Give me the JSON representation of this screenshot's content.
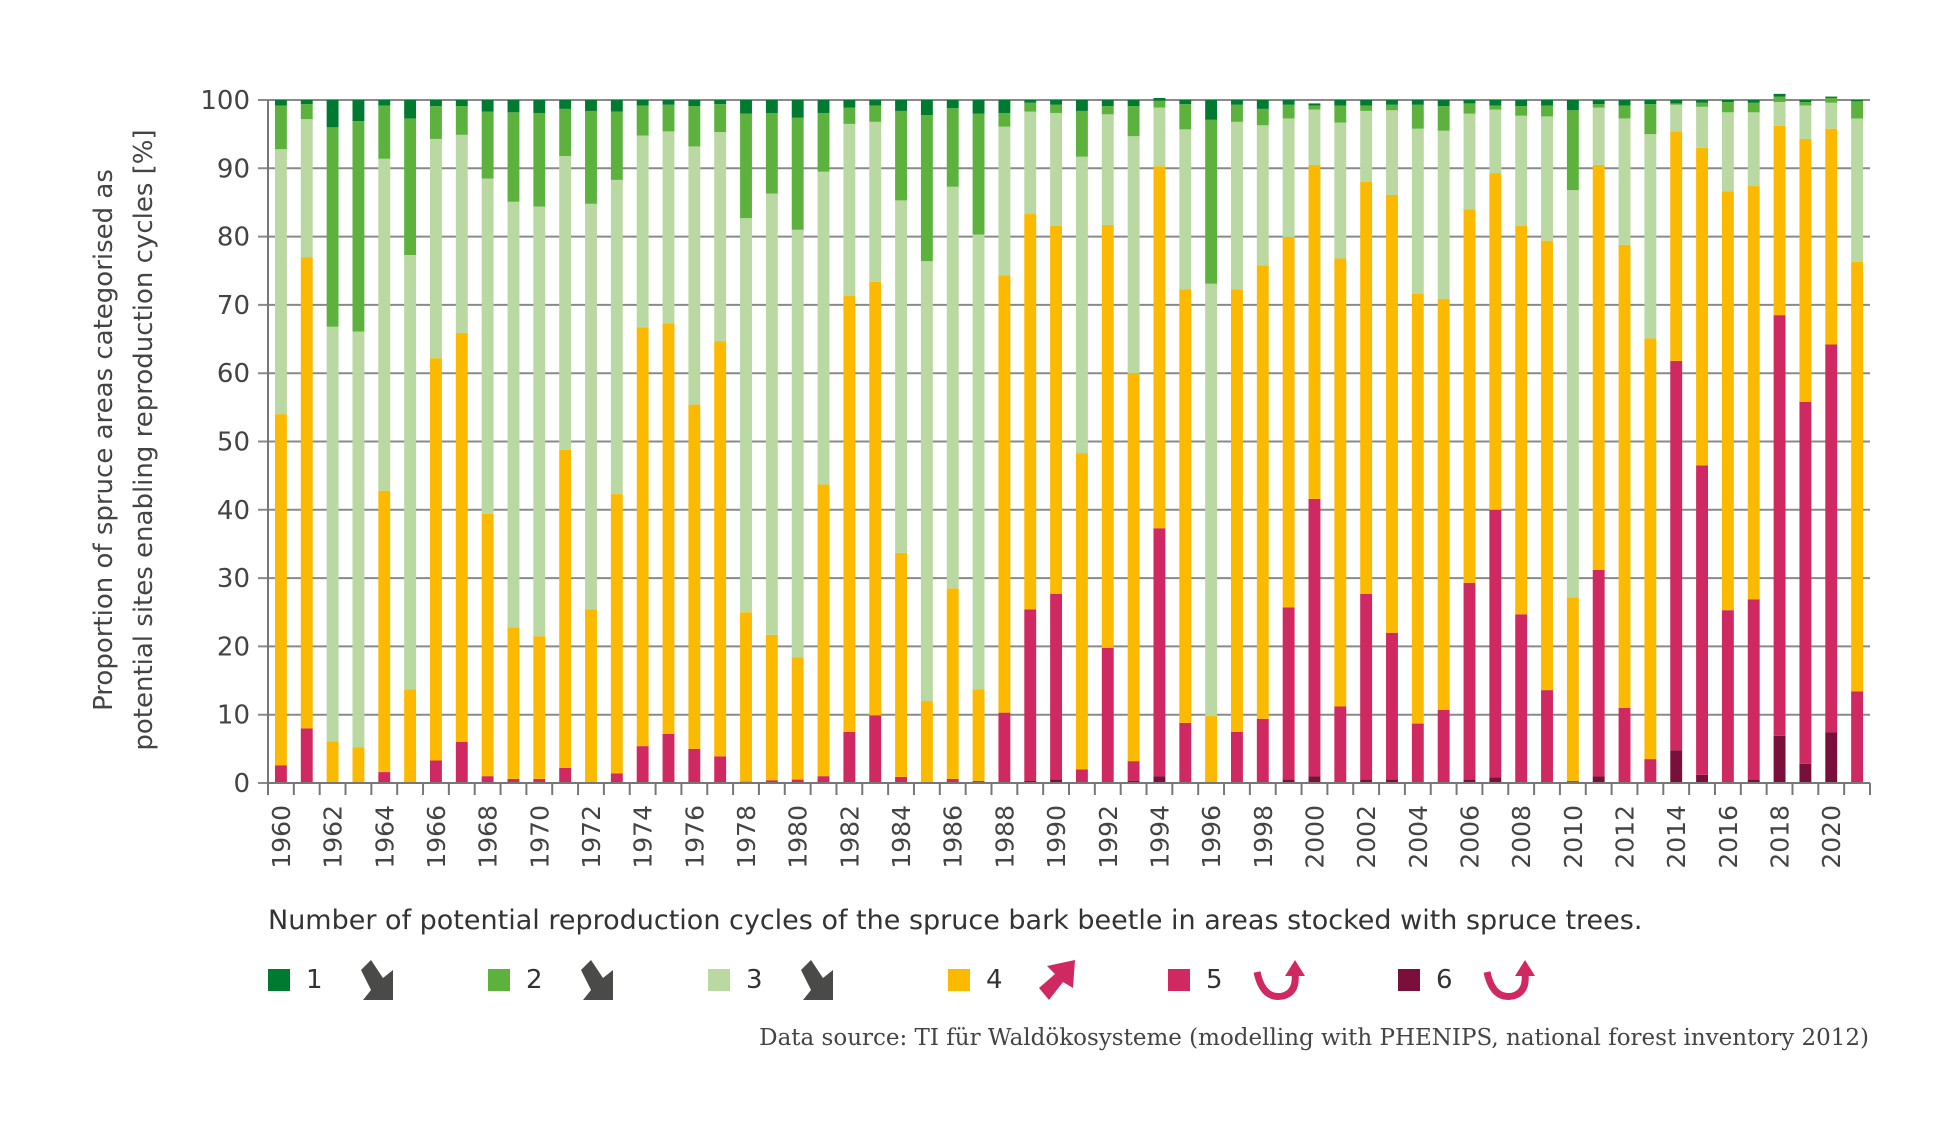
{
  "chart_data": {
    "type": "bar",
    "stacked": true,
    "title": "",
    "xlabel": "",
    "ylabel": "Proportion of spruce areas categorised as potential sites enabling reproduction cycles [%]",
    "ylabel_lines": [
      "Proportion of spruce areas categorised as",
      "potential sites enabling reproduction cycles [%]"
    ],
    "ylim": [
      0,
      100
    ],
    "yticks": [
      0,
      10,
      20,
      30,
      40,
      50,
      60,
      70,
      80,
      90,
      100
    ],
    "grid": true,
    "legend_placement": "bottom",
    "legend_title": "Number of potential reproduction cycles of the spruce bark beetle in areas stocked with spruce trees.",
    "x_tick_labels": [
      "1960",
      "1962",
      "1964",
      "1966",
      "1968",
      "1970",
      "1972",
      "1974",
      "1976",
      "1978",
      "1980",
      "1982",
      "1984",
      "1986",
      "1988",
      "1990",
      "1992",
      "1994",
      "1996",
      "1998",
      "2000",
      "2002",
      "2004",
      "2006",
      "2008",
      "2010",
      "2012",
      "2014",
      "2016",
      "2018",
      "2020"
    ],
    "categories": [
      "1960",
      "1961",
      "1962",
      "1963",
      "1964",
      "1965",
      "1966",
      "1967",
      "1968",
      "1969",
      "1970",
      "1971",
      "1972",
      "1973",
      "1974",
      "1975",
      "1976",
      "1977",
      "1978",
      "1979",
      "1980",
      "1981",
      "1982",
      "1983",
      "1984",
      "1985",
      "1986",
      "1987",
      "1988",
      "1989",
      "1990",
      "1991",
      "1992",
      "1993",
      "1994",
      "1995",
      "1996",
      "1997",
      "1998",
      "1999",
      "2000",
      "2001",
      "2002",
      "2003",
      "2004",
      "2005",
      "2006",
      "2007",
      "2008",
      "2009",
      "2010",
      "2011",
      "2012",
      "2013",
      "2014",
      "2015",
      "2016",
      "2017",
      "2018",
      "2019",
      "2020",
      "2021"
    ],
    "series": [
      {
        "name": "6",
        "color": "#7b0f3c",
        "trend": "up-curve",
        "values": [
          0,
          0,
          0,
          0,
          0,
          0,
          0,
          0,
          0,
          0,
          0,
          0,
          0,
          0,
          0,
          0,
          0,
          0,
          0,
          0,
          0,
          0,
          0,
          0,
          0,
          0,
          0,
          0,
          0,
          0.3,
          0.5,
          0,
          0,
          0.3,
          1,
          0,
          0,
          0,
          0,
          0.5,
          1,
          0,
          0.5,
          0.5,
          0,
          0,
          0.5,
          0.8,
          0,
          0,
          0,
          1,
          0,
          0,
          4.8,
          1.2,
          0,
          0.5,
          6.9,
          2.8,
          7.4,
          0
        ]
      },
      {
        "name": "5",
        "color": "#d02860",
        "trend": "up-curve",
        "values": [
          2.6,
          8,
          0,
          0,
          1.6,
          0,
          3.3,
          6,
          1,
          0.6,
          0.6,
          2.2,
          0,
          1.4,
          5.4,
          7.2,
          5,
          3.9,
          0.2,
          0.4,
          0.5,
          1,
          7.5,
          9.9,
          0.9,
          0,
          0.6,
          0.3,
          10.3,
          25.1,
          27.2,
          2,
          19.8,
          2.9,
          36.3,
          8.8,
          0,
          7.5,
          9.4,
          25.2,
          40.6,
          11.2,
          27.2,
          21.5,
          8.7,
          10.7,
          28.8,
          39.2,
          24.7,
          13.6,
          0.3,
          30.2,
          11,
          3.5,
          57,
          45.3,
          25.3,
          26.4,
          61.6,
          53,
          56.8,
          13.4
        ]
      },
      {
        "name": "4",
        "color": "#fbb900",
        "trend": "up",
        "values": [
          51.4,
          69,
          6.1,
          5.2,
          41.2,
          13.7,
          58.9,
          59.9,
          38.4,
          22.2,
          20.9,
          46.6,
          25.4,
          40.9,
          61.3,
          60.1,
          50.4,
          60.8,
          24.8,
          21.3,
          17.9,
          42.7,
          63.8,
          63.5,
          32.8,
          12,
          27.9,
          13.4,
          64,
          57.9,
          53.9,
          46.3,
          61.9,
          56.8,
          53,
          63.5,
          9.8,
          64.8,
          66.4,
          54.2,
          48.9,
          65.6,
          60.3,
          64.1,
          62.9,
          60.2,
          54.7,
          49.3,
          56.9,
          65.8,
          26.9,
          59.3,
          67.8,
          61.6,
          33.6,
          46.5,
          61.3,
          60.5,
          27.7,
          38.5,
          31.6,
          62.9
        ]
      },
      {
        "name": "3",
        "color": "#bad8a1",
        "trend": "down",
        "values": [
          38.8,
          20.2,
          60.7,
          60.9,
          48.6,
          63.6,
          32.1,
          29,
          49.1,
          62.3,
          62.9,
          43,
          59.4,
          46,
          28.1,
          28.1,
          37.8,
          30.6,
          57.7,
          64.6,
          62.6,
          45.8,
          25.2,
          23.4,
          51.6,
          64.4,
          58.8,
          66.6,
          21.8,
          15,
          16.5,
          43.4,
          16.2,
          34.7,
          8.6,
          23.4,
          63.3,
          24.5,
          20.5,
          17.4,
          8.1,
          19.9,
          10.4,
          12.4,
          24.2,
          24.6,
          14,
          9.3,
          16.1,
          18.2,
          59.6,
          8.4,
          18.5,
          29.9,
          3.9,
          6,
          11.6,
          10.8,
          3.5,
          4.9,
          3.8,
          21
        ]
      },
      {
        "name": "2",
        "color": "#5db23e",
        "trend": "down",
        "values": [
          6.4,
          2.2,
          29.2,
          30.8,
          7.8,
          20,
          4.8,
          4.2,
          9.8,
          13.1,
          13.7,
          6.9,
          13.6,
          10,
          4.4,
          3.9,
          5.9,
          4.1,
          15.3,
          11.8,
          16.4,
          8.6,
          2.4,
          2.4,
          13.1,
          21.4,
          11.5,
          17.7,
          2,
          1.3,
          1.2,
          6.7,
          1.2,
          4.4,
          1,
          3.7,
          24,
          2.5,
          2.4,
          2,
          0.6,
          2.5,
          0.8,
          0.8,
          3.5,
          3.6,
          1.5,
          0.6,
          1.4,
          1.6,
          11.7,
          0.5,
          1.9,
          4.4,
          0.2,
          0.6,
          1.5,
          1.4,
          0.8,
          0.5,
          0.7,
          2.5
        ]
      },
      {
        "name": "1",
        "color": "#007a30",
        "trend": "down",
        "values": [
          0.8,
          0.6,
          4,
          3.1,
          0.8,
          2.7,
          0.9,
          0.9,
          1.7,
          1.8,
          1.9,
          1.3,
          1.6,
          1.7,
          0.8,
          0.7,
          0.9,
          0.6,
          2,
          1.9,
          2.6,
          1.9,
          1.1,
          0.8,
          1.6,
          2.2,
          1.2,
          2,
          1.9,
          0.4,
          0.7,
          1.6,
          0.9,
          0.9,
          0.4,
          0.6,
          2.9,
          0.7,
          1.3,
          0.7,
          0.3,
          0.8,
          0.8,
          0.7,
          0.7,
          0.9,
          0.5,
          0.8,
          0.9,
          0.8,
          1.5,
          0.6,
          0.8,
          0.6,
          0.5,
          0.4,
          0.3,
          0.4,
          0.4,
          0.3,
          0.2,
          0.2
        ]
      }
    ]
  },
  "legend": {
    "title": "Number of potential reproduction cycles of the spruce bark beetle in areas stocked with spruce trees.",
    "items": [
      {
        "label": "1",
        "color": "#007a30",
        "icon": "arrow-down-right-icon",
        "icon_color": "#4a4a48"
      },
      {
        "label": "2",
        "color": "#5db23e",
        "icon": "arrow-down-right-icon",
        "icon_color": "#4a4a48"
      },
      {
        "label": "3",
        "color": "#bad8a1",
        "icon": "arrow-down-right-icon",
        "icon_color": "#4a4a48"
      },
      {
        "label": "4",
        "color": "#fbb900",
        "icon": "arrow-up-right-icon",
        "icon_color": "#d02860"
      },
      {
        "label": "5",
        "color": "#d02860",
        "icon": "curved-arrow-up-icon",
        "icon_color": "#d02860"
      },
      {
        "label": "6",
        "color": "#7b0f3c",
        "icon": "curved-arrow-up-icon",
        "icon_color": "#d02860"
      }
    ]
  },
  "source": "Data source: TI für Waldökosysteme (modelling with PHENIPS, national forest inventory 2012)"
}
